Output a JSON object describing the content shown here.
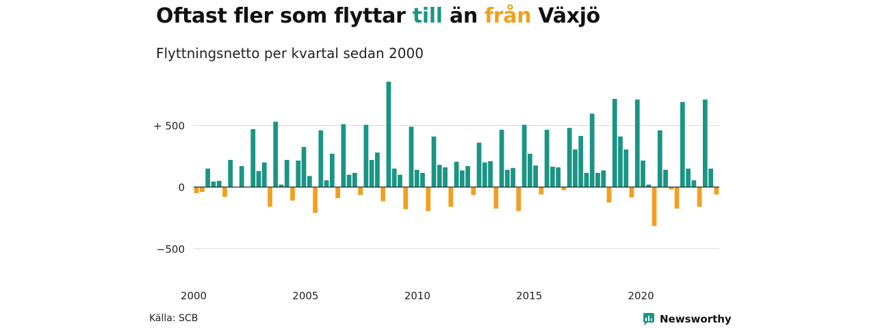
{
  "header": {
    "title_parts": [
      {
        "text": "Oftast fler som flyttar ",
        "color": "#111111"
      },
      {
        "text": "till",
        "color": "#1a9585"
      },
      {
        "text": " än ",
        "color": "#111111"
      },
      {
        "text": "från",
        "color": "#f0a020"
      },
      {
        "text": " Växjö",
        "color": "#111111"
      }
    ],
    "subtitle": "Flyttningsnetto per kvartal sedan 2000"
  },
  "footer": {
    "source": "Källa: SCB",
    "brand": "Newsworthy",
    "brand_icon": "newsworthy-logo-icon"
  },
  "colors": {
    "positive": "#1a9585",
    "negative": "#f0a020",
    "grid": "#d9d9d9",
    "zero_line": "#222222"
  },
  "chart_data": {
    "type": "bar",
    "title": "",
    "xlabel": "",
    "ylabel": "",
    "ylim": [
      -700,
      880
    ],
    "yticks": [
      -500,
      0,
      500
    ],
    "ytick_labels": [
      "−500",
      "0",
      "+ 500"
    ],
    "xlim": [
      2000,
      2023.5
    ],
    "xticks": [
      2000,
      2005,
      2010,
      2015,
      2020
    ],
    "grid": true,
    "series": [
      {
        "values": [
          -50,
          -40,
          150,
          45,
          50,
          -80,
          220,
          0,
          170,
          0,
          470,
          130,
          200,
          -160,
          530,
          20,
          220,
          -110,
          215,
          325,
          90,
          -210,
          460,
          55,
          270,
          -90,
          510,
          100,
          115,
          -65,
          505,
          220,
          280,
          -115,
          855,
          150,
          100,
          -180,
          490,
          140,
          115,
          -195,
          410,
          180,
          160,
          -160,
          205,
          135,
          170,
          -65,
          360,
          200,
          210,
          -175,
          465,
          140,
          155,
          -195,
          505,
          270,
          175,
          -60,
          465,
          165,
          160,
          -25,
          480,
          305,
          415,
          115,
          595,
          115,
          135,
          -125,
          715,
          410,
          305,
          -85,
          710,
          215,
          20,
          -315,
          460,
          140,
          -20,
          -175,
          690,
          150,
          55,
          -160,
          710,
          150,
          -60
        ]
      }
    ]
  }
}
